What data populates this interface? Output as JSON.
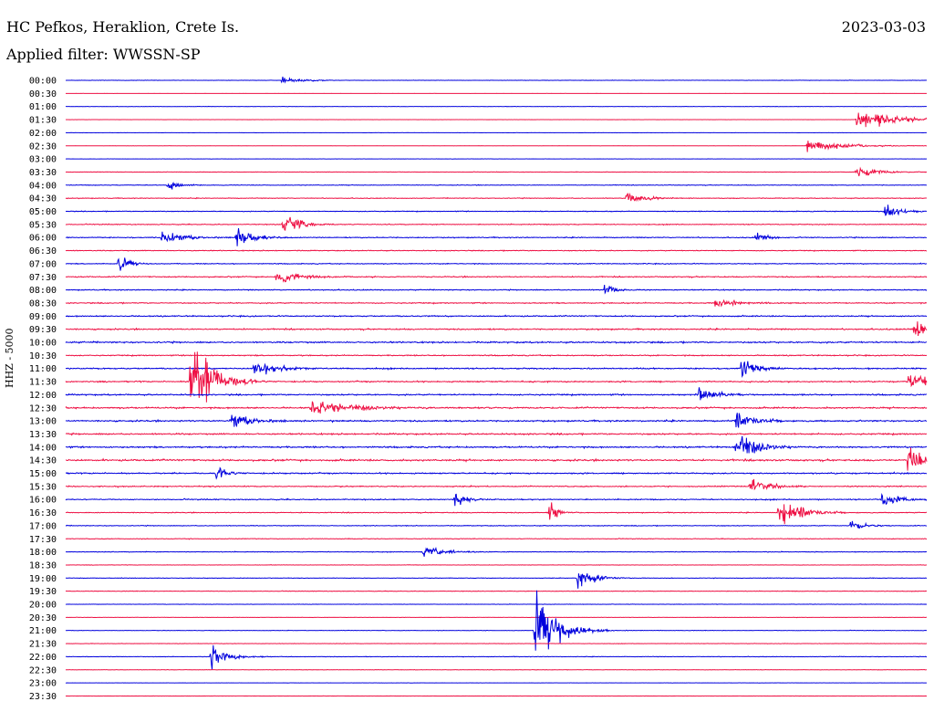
{
  "header": {
    "station": "HC Pefkos, Heraklion, Crete Is.",
    "date": "2023-03-03",
    "filter": "Applied filter: WWSSN-SP"
  },
  "chart_data": {
    "type": "line",
    "title": "HC Pefkos, Heraklion, Crete Is.",
    "subtitle": "Applied filter: WWSSN-SP",
    "ylabel": "HHZ - 5000",
    "trace_colors": [
      "#0000dd",
      "#ee1144"
    ],
    "rows": [
      "00:00",
      "00:30",
      "01:00",
      "01:30",
      "02:00",
      "02:30",
      "03:00",
      "03:30",
      "04:00",
      "04:30",
      "05:00",
      "05:30",
      "06:00",
      "06:30",
      "07:00",
      "07:30",
      "08:00",
      "08:30",
      "09:00",
      "09:30",
      "10:00",
      "10:30",
      "11:00",
      "11:30",
      "12:00",
      "12:30",
      "13:00",
      "13:30",
      "14:00",
      "14:30",
      "15:00",
      "15:30",
      "16:00",
      "16:30",
      "17:00",
      "17:30",
      "18:00",
      "18:30",
      "19:00",
      "19:30",
      "20:00",
      "20:30",
      "21:00",
      "21:30",
      "22:00",
      "22:30",
      "23:00",
      "23:30"
    ],
    "noise_level": [
      0.18,
      0.05,
      0.15,
      0.06,
      0.1,
      0.08,
      0.12,
      0.22,
      0.3,
      0.35,
      0.35,
      0.4,
      0.45,
      0.4,
      0.4,
      0.5,
      0.45,
      0.5,
      0.55,
      0.6,
      0.7,
      0.5,
      0.6,
      0.6,
      0.65,
      0.7,
      0.7,
      0.7,
      0.7,
      0.8,
      0.6,
      0.5,
      0.5,
      0.4,
      0.35,
      0.3,
      0.3,
      0.2,
      0.25,
      0.25,
      0.2,
      0.15,
      0.2,
      0.2,
      0.25,
      0.18,
      0.1,
      0.1
    ],
    "events": [
      {
        "row": 0,
        "t": 7.5,
        "amp": 3,
        "dur": 1.5
      },
      {
        "row": 3,
        "t": 27.5,
        "amp": 8,
        "dur": 3
      },
      {
        "row": 5,
        "t": 25.8,
        "amp": 5,
        "dur": 2.5
      },
      {
        "row": 7,
        "t": 27.5,
        "amp": 5,
        "dur": 1.5
      },
      {
        "row": 8,
        "t": 3.5,
        "amp": 5,
        "dur": 0.8
      },
      {
        "row": 9,
        "t": 19.5,
        "amp": 4,
        "dur": 1.5
      },
      {
        "row": 10,
        "t": 28.5,
        "amp": 7,
        "dur": 1
      },
      {
        "row": 11,
        "t": 7.5,
        "amp": 11,
        "dur": 1.2
      },
      {
        "row": 12,
        "t": 3.3,
        "amp": 6,
        "dur": 1.5
      },
      {
        "row": 12,
        "t": 5.9,
        "amp": 9,
        "dur": 1.2
      },
      {
        "row": 12,
        "t": 24,
        "amp": 4,
        "dur": 1
      },
      {
        "row": 14,
        "t": 1.8,
        "amp": 9,
        "dur": 0.7
      },
      {
        "row": 15,
        "t": 7.3,
        "amp": 5,
        "dur": 2
      },
      {
        "row": 16,
        "t": 18.7,
        "amp": 5,
        "dur": 0.8
      },
      {
        "row": 17,
        "t": 22.6,
        "amp": 5,
        "dur": 1.5
      },
      {
        "row": 19,
        "t": 29.5,
        "amp": 8,
        "dur": 1.5
      },
      {
        "row": 22,
        "t": 6.5,
        "amp": 8,
        "dur": 1.5
      },
      {
        "row": 22,
        "t": 23.5,
        "amp": 9,
        "dur": 1.2
      },
      {
        "row": 23,
        "t": 4.3,
        "amp": 40,
        "dur": 1.5
      },
      {
        "row": 23,
        "t": 29.3,
        "amp": 8,
        "dur": 2
      },
      {
        "row": 24,
        "t": 22,
        "amp": 7,
        "dur": 1.2
      },
      {
        "row": 25,
        "t": 8.5,
        "amp": 7,
        "dur": 3
      },
      {
        "row": 26,
        "t": 5.7,
        "amp": 7,
        "dur": 1.5
      },
      {
        "row": 26,
        "t": 23.3,
        "amp": 7,
        "dur": 1.5
      },
      {
        "row": 28,
        "t": 23.3,
        "amp": 14,
        "dur": 1.5
      },
      {
        "row": 29,
        "t": 29.3,
        "amp": 12,
        "dur": 1.5
      },
      {
        "row": 30,
        "t": 5.2,
        "amp": 6,
        "dur": 1
      },
      {
        "row": 31,
        "t": 23.8,
        "amp": 10,
        "dur": 1.2
      },
      {
        "row": 32,
        "t": 13.5,
        "amp": 6,
        "dur": 1
      },
      {
        "row": 32,
        "t": 28.4,
        "amp": 6,
        "dur": 1.2
      },
      {
        "row": 33,
        "t": 16.8,
        "amp": 10,
        "dur": 0.6
      },
      {
        "row": 33,
        "t": 24.8,
        "amp": 14,
        "dur": 1.5
      },
      {
        "row": 34,
        "t": 27.3,
        "amp": 5,
        "dur": 1
      },
      {
        "row": 36,
        "t": 12.4,
        "amp": 5,
        "dur": 1.5
      },
      {
        "row": 38,
        "t": 17.8,
        "amp": 12,
        "dur": 1
      },
      {
        "row": 42,
        "t": 16.3,
        "amp": 30,
        "dur": 1.5
      },
      {
        "row": 44,
        "t": 5,
        "amp": 9,
        "dur": 1.2
      }
    ],
    "row_pattern": [
      "#0000dd",
      "#ee1144"
    ],
    "xlim_minutes": [
      0,
      30
    ]
  }
}
